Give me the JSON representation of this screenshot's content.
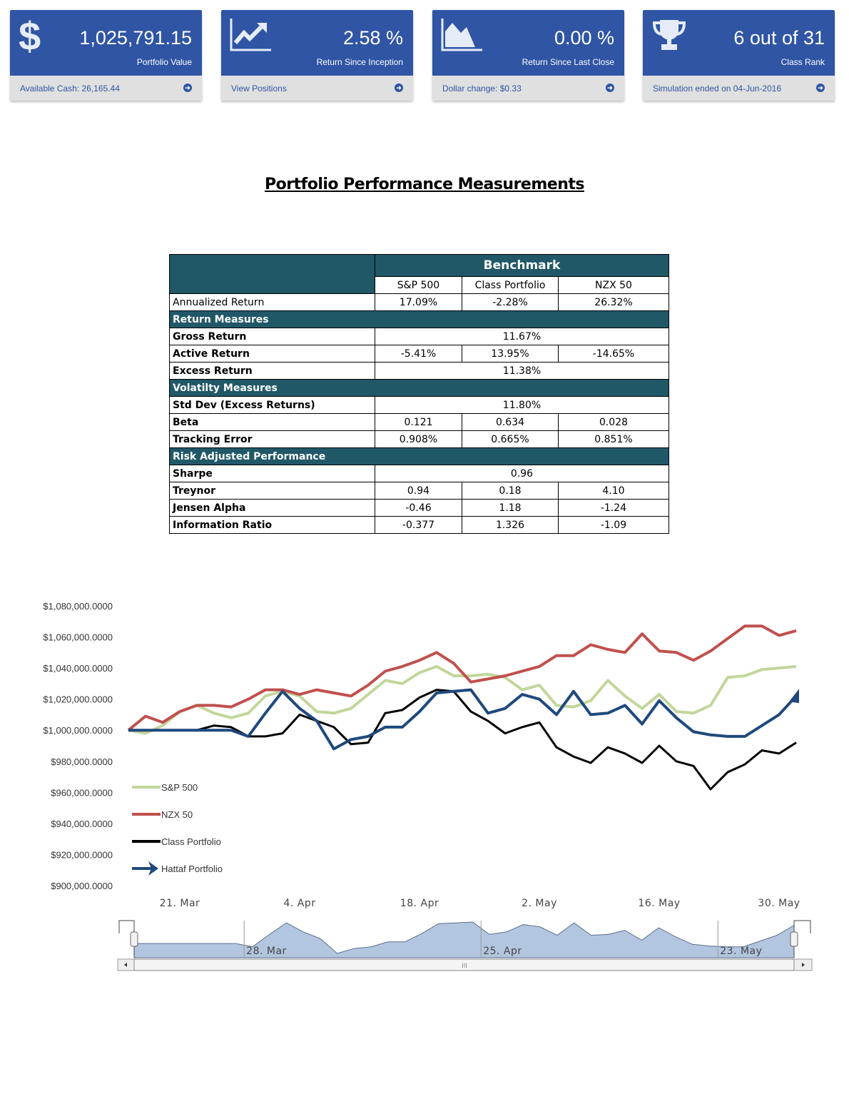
{
  "cards": [
    {
      "icon": "dollar-icon",
      "value": "1,025,791.15",
      "label": "Portfolio Value",
      "footer": "Available Cash: 26,165.44"
    },
    {
      "icon": "line-chart-icon",
      "value": "2.58 %",
      "label": "Return Since Inception",
      "footer": "View Positions"
    },
    {
      "icon": "area-chart-icon",
      "value": "0.00 %",
      "label": "Return Since Last Close",
      "footer": "Dollar change: $0.33"
    },
    {
      "icon": "trophy-icon",
      "value": "6 out of 31",
      "label": "Class Rank",
      "footer": "Simulation ended on 04-Jun-2016"
    }
  ],
  "title": "Portfolio Performance Measurements",
  "table": {
    "benchmark_header": "Benchmark",
    "columns": [
      "S&P 500",
      "Class Portfolio",
      "NZX 50"
    ],
    "rows": [
      {
        "type": "row",
        "bold": false,
        "label": "Annualized Return",
        "cells": [
          "17.09%",
          "-2.28%",
          "26.32%"
        ]
      },
      {
        "type": "section",
        "label": "Return Measures"
      },
      {
        "type": "row",
        "bold": true,
        "label": "Gross Return",
        "merged": "11.67%"
      },
      {
        "type": "row",
        "bold": true,
        "label": "Active Return",
        "cells": [
          "-5.41%",
          "13.95%",
          "-14.65%"
        ]
      },
      {
        "type": "row",
        "bold": true,
        "label": "Excess Return",
        "merged": "11.38%"
      },
      {
        "type": "section",
        "label": "Volatilty Measures"
      },
      {
        "type": "row",
        "bold": true,
        "label": "Std Dev (Excess Returns)",
        "merged": "11.80%"
      },
      {
        "type": "row",
        "bold": true,
        "label": "Beta",
        "cells": [
          "0.121",
          "0.634",
          "0.028"
        ]
      },
      {
        "type": "row",
        "bold": true,
        "label": "Tracking Error",
        "cells": [
          "0.908%",
          "0.665%",
          "0.851%"
        ]
      },
      {
        "type": "section",
        "label": "Risk Adjusted Performance"
      },
      {
        "type": "row",
        "bold": true,
        "label": "Sharpe",
        "merged": "0.96"
      },
      {
        "type": "row",
        "bold": true,
        "label": "Treynor",
        "cells": [
          "0.94",
          "0.18",
          "4.10"
        ]
      },
      {
        "type": "row",
        "bold": true,
        "label": "Jensen Alpha",
        "cells": [
          "-0.46",
          "1.18",
          "-1.24"
        ]
      },
      {
        "type": "row",
        "bold": true,
        "label": "Information Ratio",
        "cells": [
          "-0.377",
          "1.326",
          "-1.09"
        ]
      }
    ]
  },
  "chart_data": {
    "type": "line",
    "ylim": [
      900000,
      1080000
    ],
    "y_ticks": [
      "$1,080,000.0000",
      "$1,060,000.0000",
      "$1,040,000.0000",
      "$1,020,000.0000",
      "$1,000,000.0000",
      "$980,000.0000",
      "$960,000.0000",
      "$940,000.0000",
      "$920,000.0000",
      "$900,000.0000"
    ],
    "y_tick_values": [
      1080000,
      1060000,
      1040000,
      1020000,
      1000000,
      980000,
      960000,
      940000,
      920000,
      900000
    ],
    "x_ticks": [
      {
        "label": "21. Mar",
        "date": "2016-03-21"
      },
      {
        "label": "4. Apr",
        "date": "2016-04-04"
      },
      {
        "label": "18. Apr",
        "date": "2016-04-18"
      },
      {
        "label": "2. May",
        "date": "2016-05-02"
      },
      {
        "label": "16. May",
        "date": "2016-05-16"
      },
      {
        "label": "30. May",
        "date": "2016-05-30"
      }
    ],
    "navigator_ticks": [
      {
        "label": "28. Mar",
        "date": "2016-03-28"
      },
      {
        "label": "25. Apr",
        "date": "2016-04-25"
      },
      {
        "label": "23. May",
        "date": "2016-05-23"
      }
    ],
    "navigator_scrollbar_grip": "III",
    "grid": false,
    "legend_position": "left",
    "x": [
      "2016-03-15",
      "2016-03-17",
      "2016-03-19",
      "2016-03-21",
      "2016-03-23",
      "2016-03-25",
      "2016-03-27",
      "2016-03-29",
      "2016-03-31",
      "2016-04-02",
      "2016-04-04",
      "2016-04-06",
      "2016-04-08",
      "2016-04-10",
      "2016-04-12",
      "2016-04-14",
      "2016-04-16",
      "2016-04-18",
      "2016-04-20",
      "2016-04-22",
      "2016-04-24",
      "2016-04-26",
      "2016-04-28",
      "2016-04-30",
      "2016-05-02",
      "2016-05-04",
      "2016-05-06",
      "2016-05-08",
      "2016-05-10",
      "2016-05-12",
      "2016-05-14",
      "2016-05-16",
      "2016-05-18",
      "2016-05-20",
      "2016-05-22",
      "2016-05-24",
      "2016-05-26",
      "2016-05-28",
      "2016-05-30",
      "2016-06-01"
    ],
    "series": [
      {
        "name": "S&P 500",
        "color": "#c3d69b",
        "values": [
          1000000,
          998000,
          1003000,
          1012000,
          1016000,
          1011000,
          1008000,
          1011000,
          1022000,
          1025000,
          1022000,
          1012000,
          1011000,
          1014000,
          1023000,
          1032000,
          1030000,
          1037000,
          1041000,
          1035000,
          1035000,
          1036000,
          1034000,
          1026000,
          1029000,
          1016000,
          1015000,
          1019000,
          1032000,
          1022000,
          1014000,
          1023000,
          1012000,
          1011000,
          1016000,
          1034000,
          1035000,
          1039000,
          1040000,
          1041000
        ]
      },
      {
        "name": "NZX 50",
        "color": "#c0504d",
        "values": [
          1000000,
          1009000,
          1005000,
          1012000,
          1016000,
          1016000,
          1015000,
          1020000,
          1026000,
          1026000,
          1023000,
          1026000,
          1024000,
          1022000,
          1029000,
          1038000,
          1041000,
          1045000,
          1050000,
          1043000,
          1031000,
          1033000,
          1035000,
          1038000,
          1041000,
          1048000,
          1048000,
          1055000,
          1052000,
          1050000,
          1062000,
          1051000,
          1050000,
          1045000,
          1051000,
          1059000,
          1067000,
          1067000,
          1061000,
          1064000
        ]
      },
      {
        "name": "Class Portfolio",
        "color": "#000000",
        "values": [
          1000000,
          1000000,
          1000000,
          1000000,
          1000000,
          1003000,
          1002000,
          996000,
          996000,
          998000,
          1010000,
          1006000,
          1002000,
          991000,
          992000,
          1011000,
          1013000,
          1021000,
          1026000,
          1025000,
          1012000,
          1006000,
          998000,
          1002000,
          1005000,
          989000,
          983000,
          979000,
          989000,
          985000,
          979000,
          990000,
          980000,
          977000,
          962000,
          973000,
          978000,
          987000,
          985000,
          992000
        ]
      },
      {
        "name": "Hattaf Portfolio",
        "color": "#1f497d",
        "values": [
          1000000,
          1000000,
          1000000,
          1000000,
          1000000,
          1000000,
          1000000,
          996000,
          1011000,
          1025000,
          1014000,
          1006000,
          988000,
          994000,
          996000,
          1002000,
          1002000,
          1012000,
          1024000,
          1025000,
          1026000,
          1011000,
          1014000,
          1023000,
          1020000,
          1010000,
          1025000,
          1010000,
          1011000,
          1016000,
          1004000,
          1019000,
          1008000,
          999000,
          997000,
          996000,
          996000,
          1003000,
          1010000,
          1022000
        ]
      }
    ]
  }
}
